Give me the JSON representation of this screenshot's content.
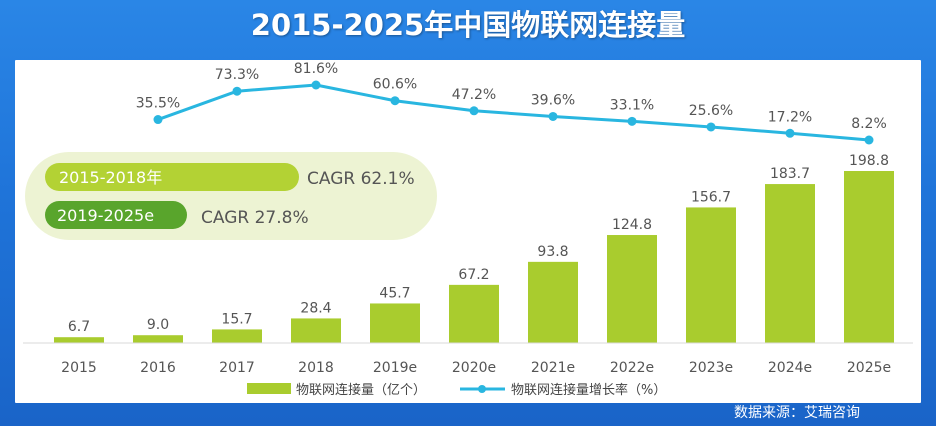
{
  "title": "2015-2025年中国物联网连接量",
  "source": "数据来源：艾瑞咨询",
  "colors": {
    "bar": "#a9cc2e",
    "line": "#29b6e0",
    "cagr_light": "#b3d234",
    "cagr_dark": "#59a52c",
    "cagr_backdrop": "#edf3d3",
    "text": "#555555"
  },
  "cagr": [
    {
      "period": "2015-2018年",
      "label": "CAGR 62.1%"
    },
    {
      "period": "2019-2025e",
      "label": "CAGR 27.8%"
    }
  ],
  "legend": {
    "bar": "物联网连接量（亿个）",
    "line": "物联网连接量增长率（%）"
  },
  "chart_data": {
    "type": "bar",
    "title": "2015-2025年中国物联网连接量",
    "categories": [
      "2015",
      "2016",
      "2017",
      "2018",
      "2019e",
      "2020e",
      "2021e",
      "2022e",
      "2023e",
      "2024e",
      "2025e"
    ],
    "series": [
      {
        "name": "物联网连接量（亿个）",
        "type": "bar",
        "values": [
          6.7,
          9.0,
          15.7,
          28.4,
          45.7,
          67.2,
          93.8,
          124.8,
          156.7,
          183.7,
          198.8
        ],
        "labels": [
          "6.7",
          "9.0",
          "15.7",
          "28.4",
          "45.7",
          "67.2",
          "93.8",
          "124.8",
          "156.7",
          "183.7",
          "198.8"
        ]
      },
      {
        "name": "物联网连接量增长率（%）",
        "type": "line",
        "x": [
          "2016",
          "2017",
          "2018",
          "2019e",
          "2020e",
          "2021e",
          "2022e",
          "2023e",
          "2024e",
          "2025e"
        ],
        "values": [
          35.5,
          73.3,
          81.6,
          60.6,
          47.2,
          39.6,
          33.1,
          25.6,
          17.2,
          8.2
        ],
        "labels": [
          "35.5%",
          "73.3%",
          "81.6%",
          "60.6%",
          "47.2%",
          "39.6%",
          "33.1%",
          "25.6%",
          "17.2%",
          "8.2%"
        ]
      }
    ],
    "legend_position": "bottom",
    "grid": false
  }
}
